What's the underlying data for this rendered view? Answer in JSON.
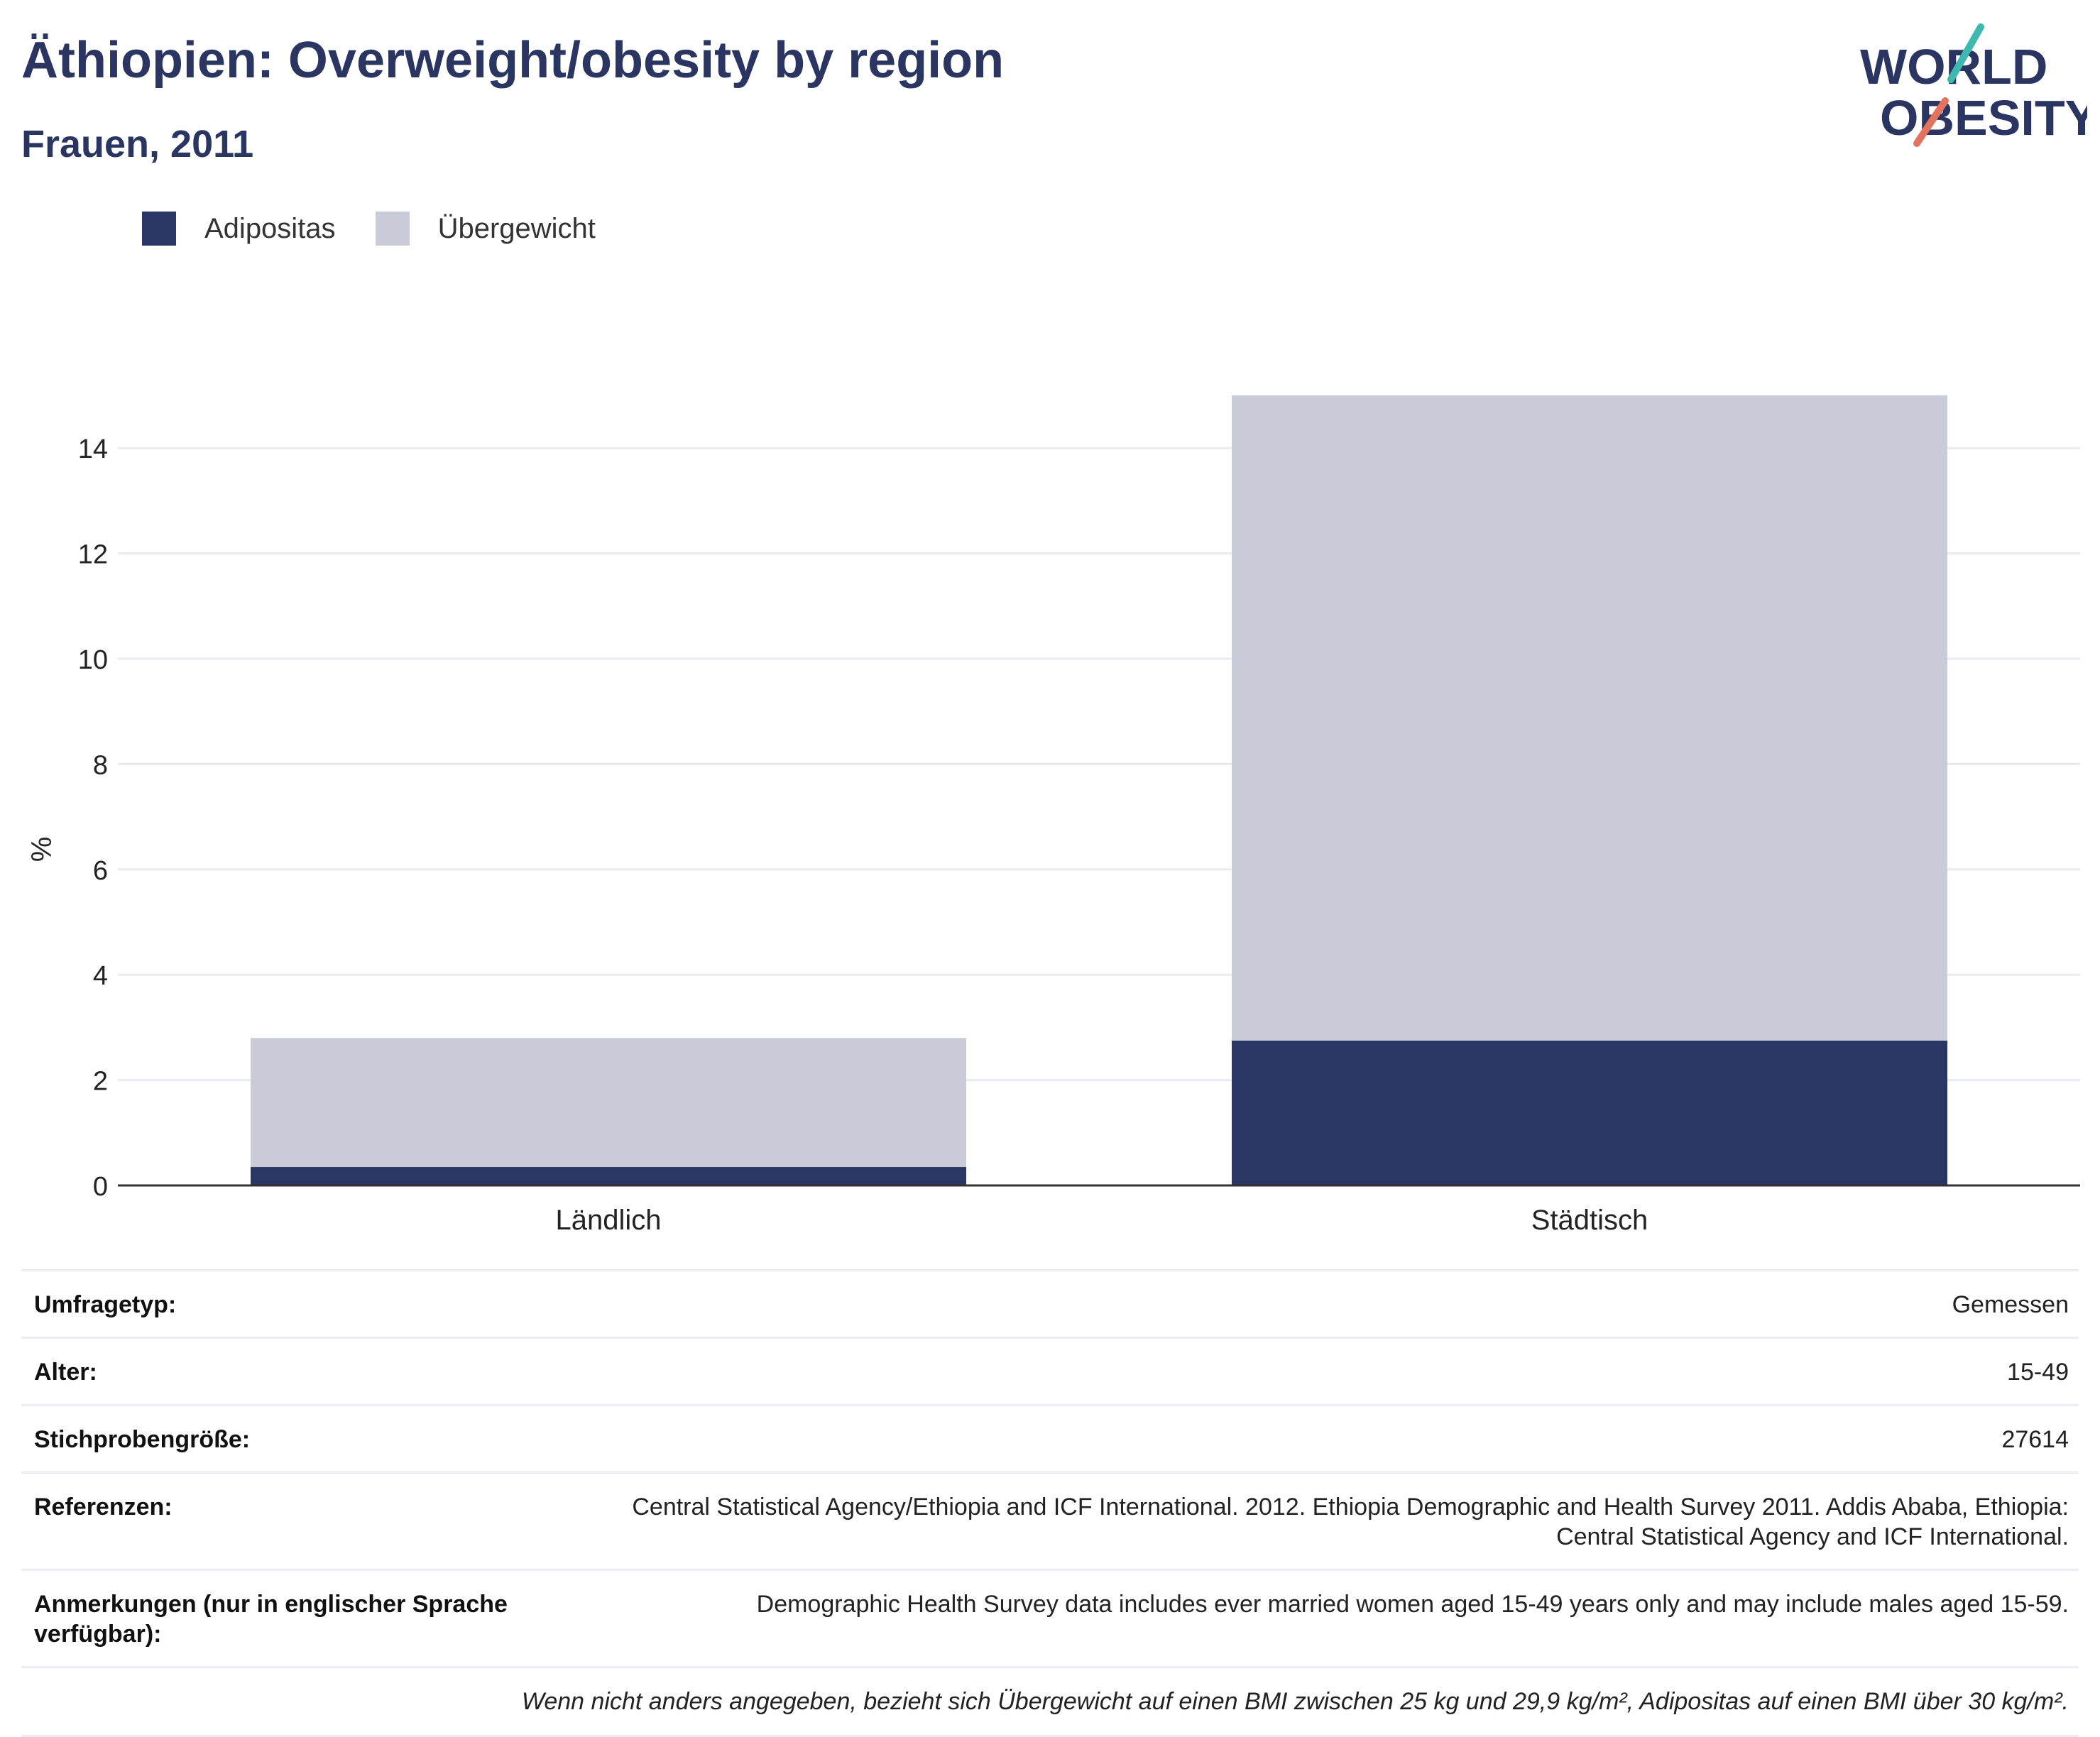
{
  "header": {
    "title": "Äthiopien: Overweight/obesity by region",
    "subtitle": "Frauen, 2011"
  },
  "logo": {
    "line1": "WORLD",
    "line2": "OBESITY"
  },
  "colors": {
    "obesity": "#2a3663",
    "overweight": "#c9ccd8",
    "heading": "#2b3561",
    "logo_teal": "#3fb8b0",
    "logo_coral": "#e3735e"
  },
  "chart_data": {
    "type": "bar",
    "stacked": true,
    "categories": [
      "Ländlich",
      "Städtisch"
    ],
    "series": [
      {
        "name": "Adipositas",
        "values": [
          0.35,
          2.75
        ]
      },
      {
        "name": "Übergewicht",
        "values": [
          2.45,
          12.25
        ]
      }
    ],
    "ylabel": "%",
    "ylim": [
      0,
      16
    ],
    "yticks": [
      0,
      2,
      4,
      6,
      8,
      10,
      12,
      14
    ],
    "grid": true,
    "legend": "top-left"
  },
  "info": {
    "rows": [
      {
        "key": "Umfragetyp:",
        "value": "Gemessen"
      },
      {
        "key": "Alter:",
        "value": "15-49"
      },
      {
        "key": "Stichprobengröße:",
        "value": "27614"
      },
      {
        "key": "Referenzen:",
        "value": "Central Statistical Agency/Ethiopia and ICF International. 2012. Ethiopia Demographic and Health Survey 2011. Addis Ababa, Ethiopia: Central Statistical Agency and ICF International."
      },
      {
        "key": "Anmerkungen (nur in englischer Sprache verfügbar):",
        "value": "Demographic Health Survey data includes ever married women aged 15-49 years only and may include males aged 15-59."
      }
    ],
    "footnote": "Wenn nicht anders angegeben, bezieht sich Übergewicht auf einen BMI zwischen 25 kg und 29,9 kg/m², Adipositas auf einen BMI über 30 kg/m²."
  }
}
